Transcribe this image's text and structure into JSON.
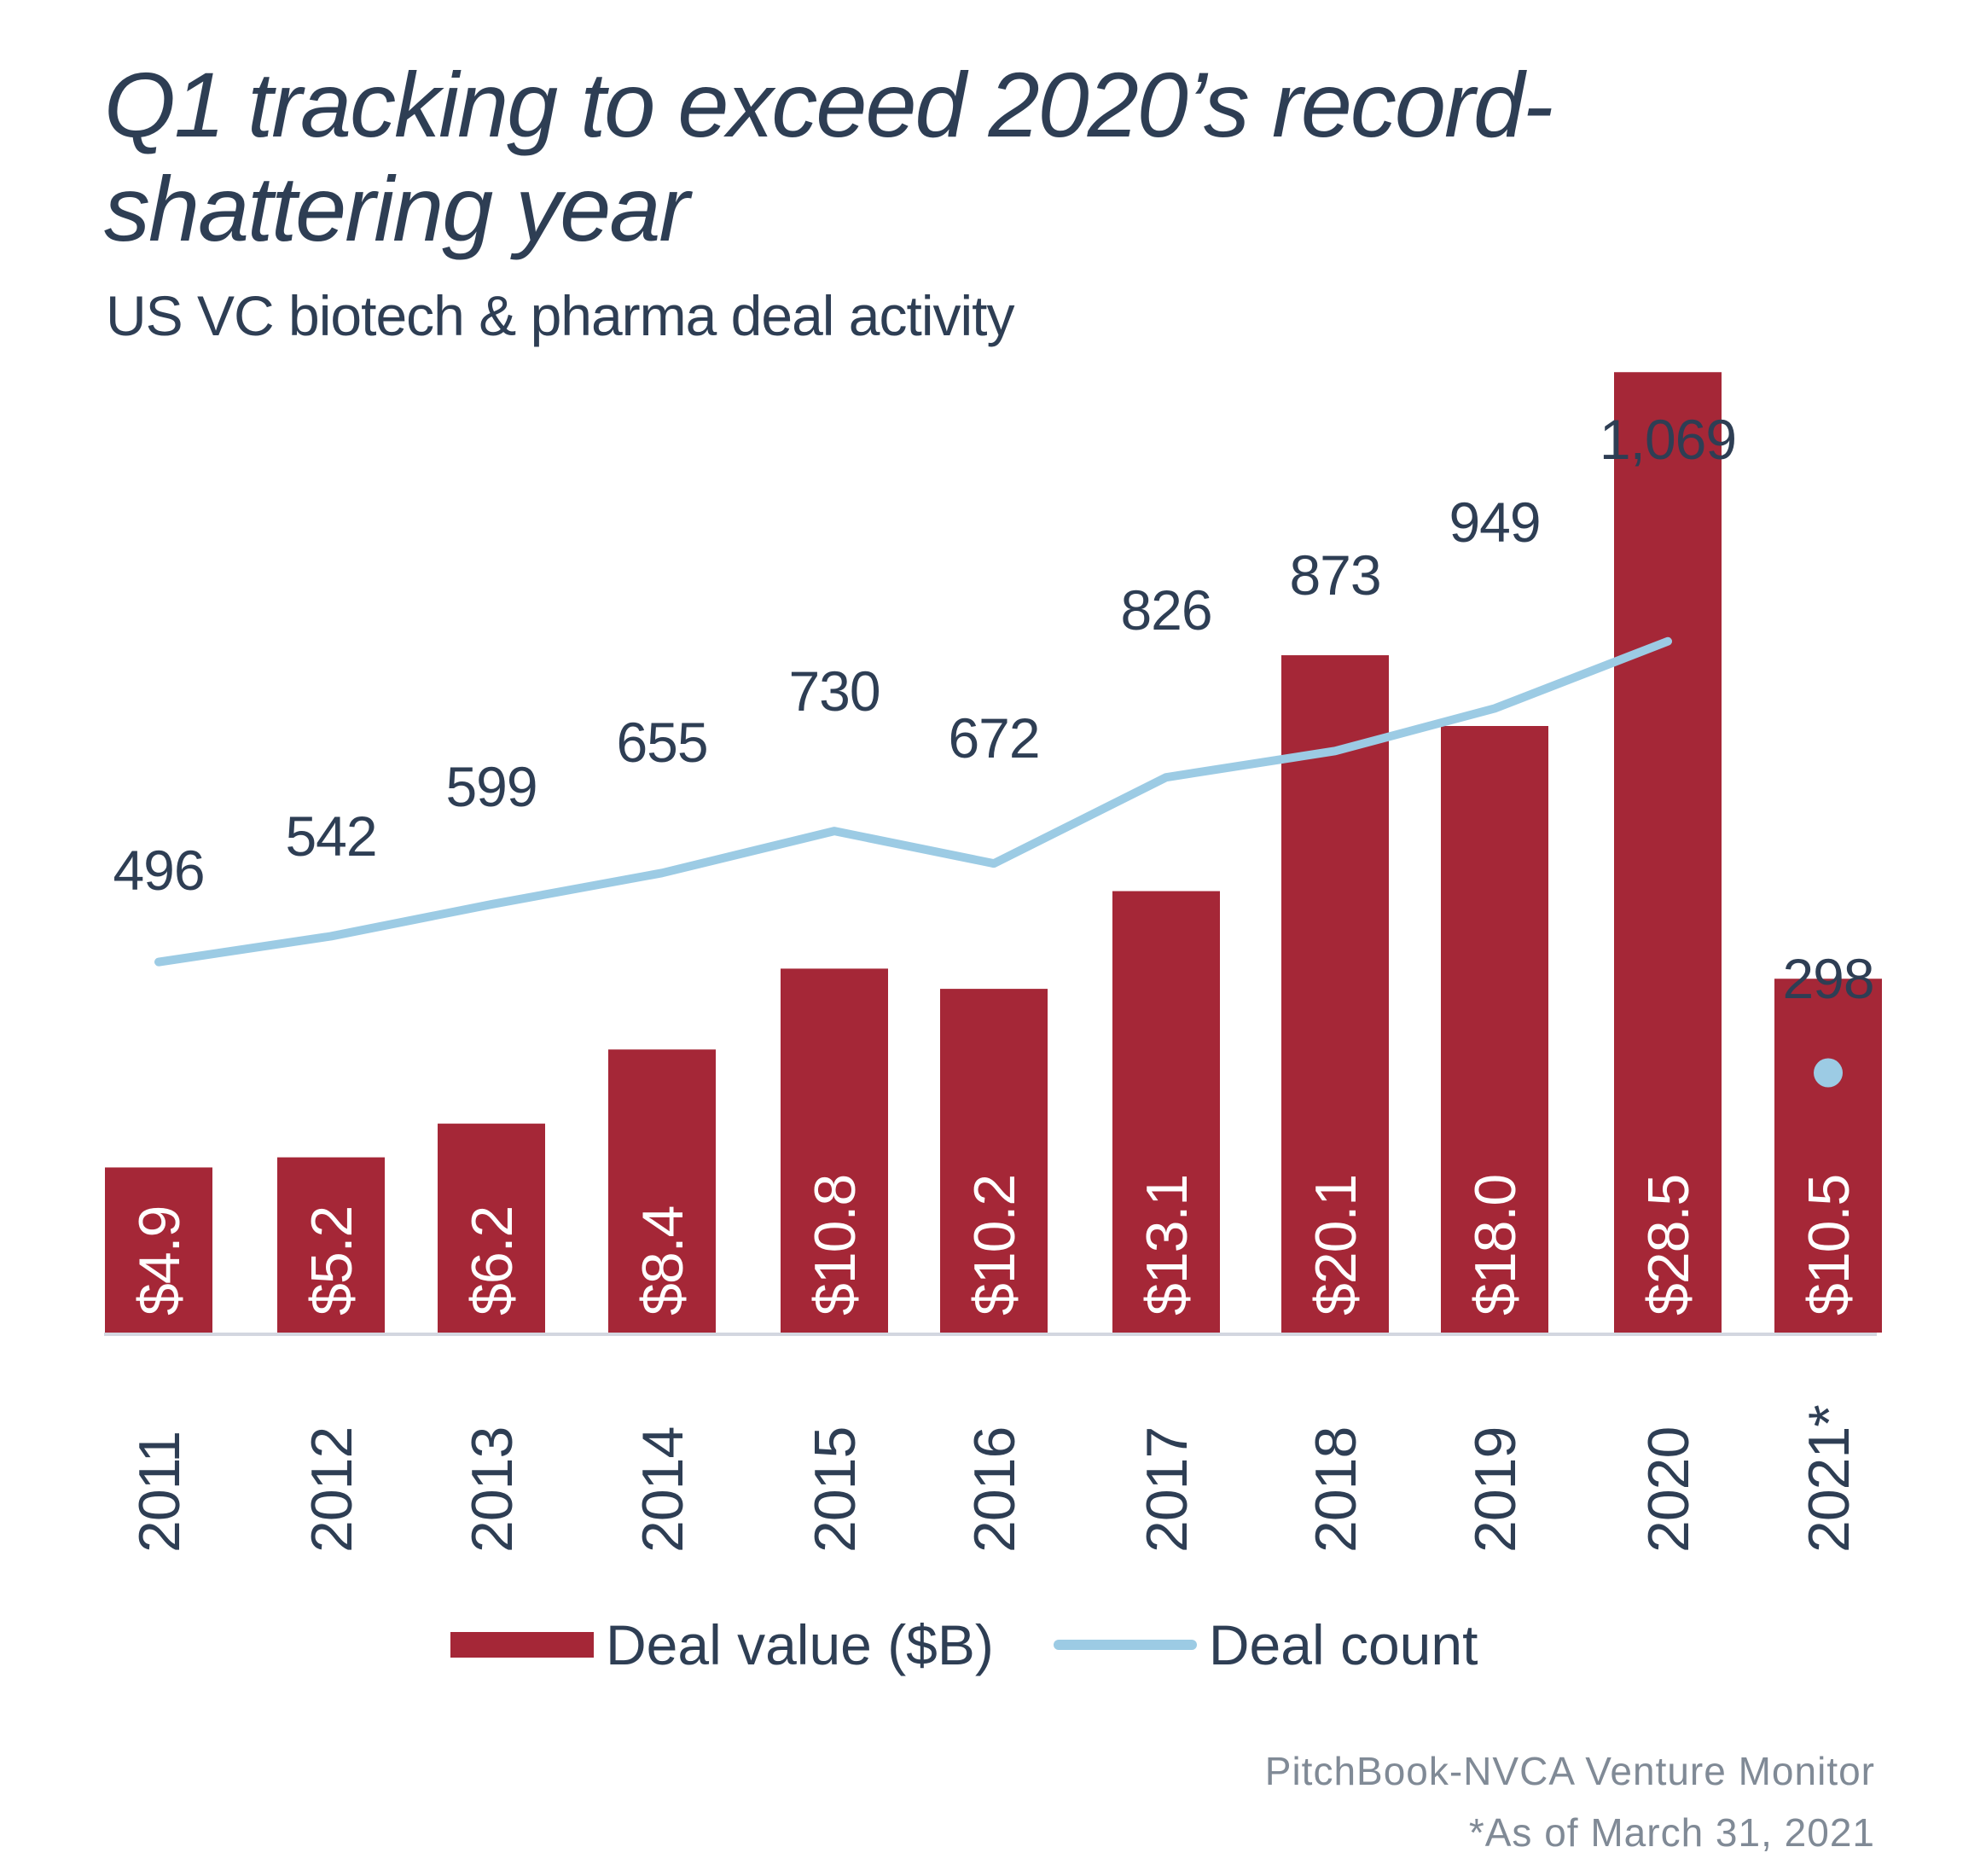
{
  "title": "Q1 tracking to exceed 2020’s record-shattering year",
  "subtitle": "US VC biotech & pharma deal activity",
  "colors": {
    "bar": "#a52737",
    "line": "#9ccbe4",
    "text": "#2e3e54",
    "axis": "#d3d7e0",
    "source": "#808a96"
  },
  "chart_data": {
    "type": "bar",
    "categories": [
      "2011",
      "2012",
      "2013",
      "2014",
      "2015",
      "2016",
      "2017",
      "2018",
      "2019",
      "2020",
      "2021*"
    ],
    "series": [
      {
        "name": "Deal value ($B)",
        "type": "bar",
        "values": [
          4.9,
          5.2,
          6.2,
          8.4,
          10.8,
          10.2,
          13.1,
          20.1,
          18.0,
          28.5,
          10.5
        ],
        "labels": [
          "$4.9",
          "$5.2",
          "$6.2",
          "$8.4",
          "$10.8",
          "$10.2",
          "$13.1",
          "$20.1",
          "$18.0",
          "$28.5",
          "$10.5"
        ]
      },
      {
        "name": "Deal count",
        "type": "line",
        "values": [
          496,
          542,
          599,
          655,
          730,
          672,
          826,
          873,
          949,
          1069,
          298
        ],
        "labels": [
          "496",
          "542",
          "599",
          "655",
          "730",
          "672",
          "826",
          "873",
          "949",
          "1,069",
          "298"
        ]
      }
    ],
    "legend": {
      "position": "bottom",
      "items": [
        "Deal value ($B)",
        "Deal count"
      ]
    },
    "grid": false
  },
  "source": {
    "line1": "PitchBook-NVCA Venture Monitor",
    "line2": "*As of March 31, 2021"
  }
}
